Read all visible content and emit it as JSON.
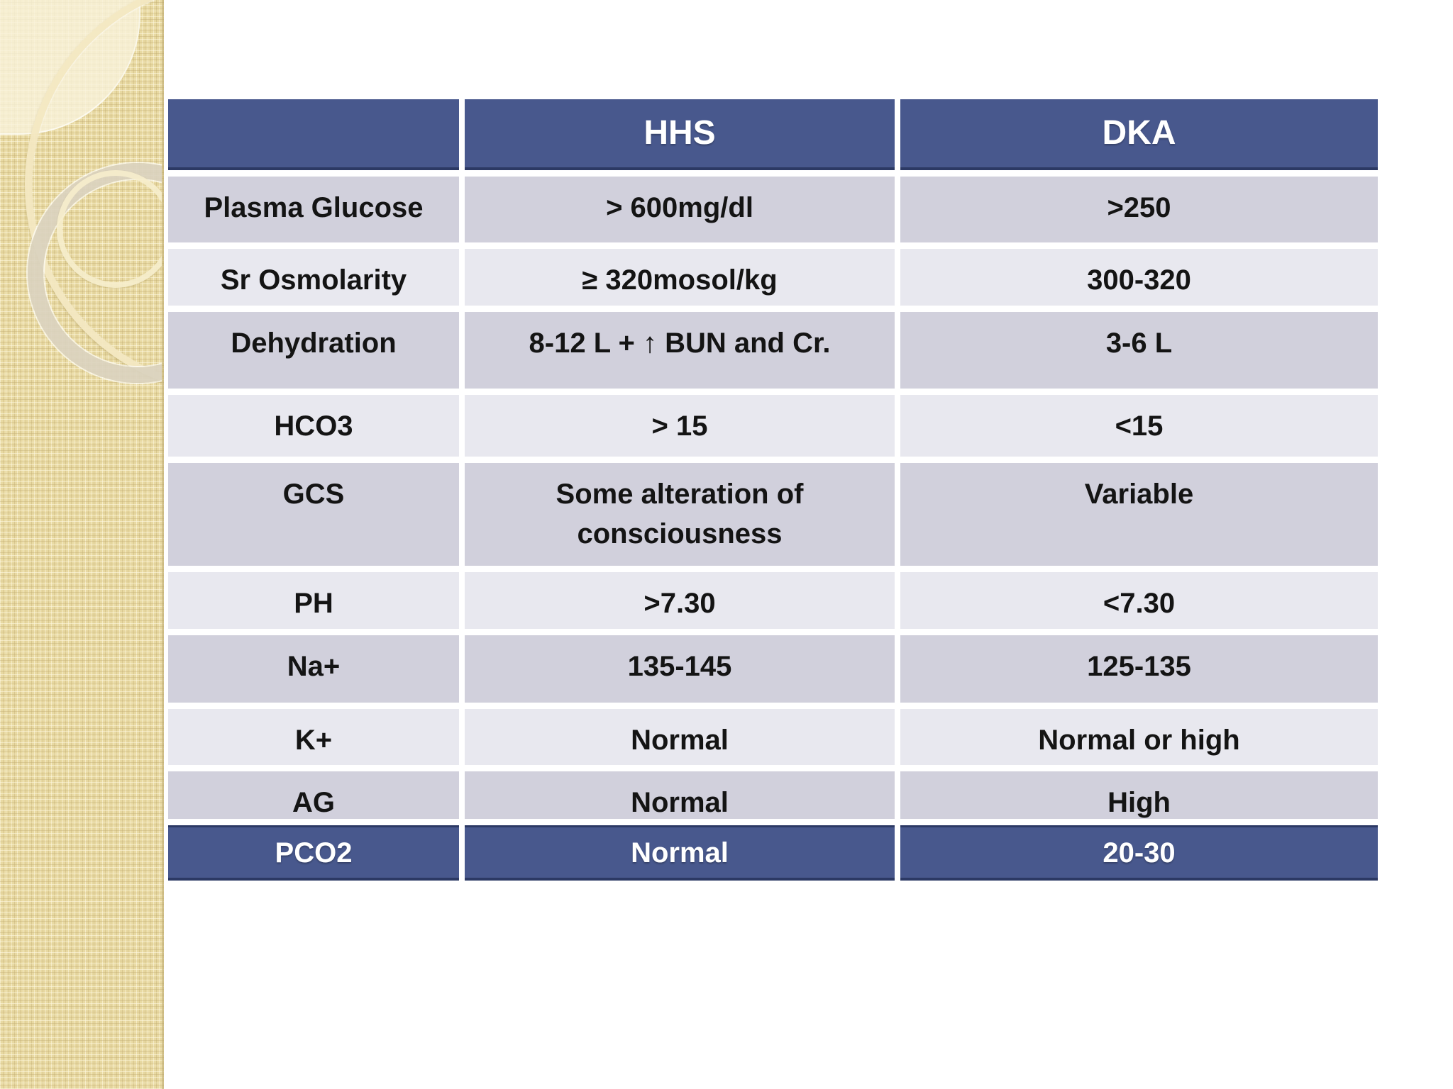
{
  "slide": {
    "colors": {
      "header_blue": "#48588d",
      "header_border_navy": "#2c3964",
      "row_dark": "#d1d0dc",
      "row_light": "#e8e8ef",
      "sidebar_beige": "#e8d9a2",
      "text_dark": "#141414",
      "text_light": "#ffffff"
    }
  },
  "table": {
    "columns": [
      "",
      "HHS",
      "DKA"
    ],
    "rows": [
      {
        "label": "Plasma Glucose",
        "hhs": "> 600mg/dl",
        "dka": ">250"
      },
      {
        "label": "Sr Osmolarity",
        "hhs": "≥ 320mosol/kg",
        "dka": "300-320"
      },
      {
        "label": "Dehydration",
        "hhs": "8-12 L + ↑ BUN and Cr.",
        "dka": "3-6 L"
      },
      {
        "label": "HCO3",
        "hhs": "> 15",
        "dka": "<15"
      },
      {
        "label": "GCS",
        "hhs": "Some alteration of consciousness",
        "dka": "Variable"
      },
      {
        "label": "PH",
        "hhs": ">7.30",
        "dka": "<7.30"
      },
      {
        "label": "Na+",
        "hhs": "135-145",
        "dka": "125-135"
      },
      {
        "label": "K+",
        "hhs": "Normal",
        "dka": "Normal or high"
      },
      {
        "label": "AG",
        "hhs": "Normal",
        "dka": "High"
      },
      {
        "label": "PCO2",
        "hhs": "Normal",
        "dka": "20-30"
      }
    ]
  }
}
